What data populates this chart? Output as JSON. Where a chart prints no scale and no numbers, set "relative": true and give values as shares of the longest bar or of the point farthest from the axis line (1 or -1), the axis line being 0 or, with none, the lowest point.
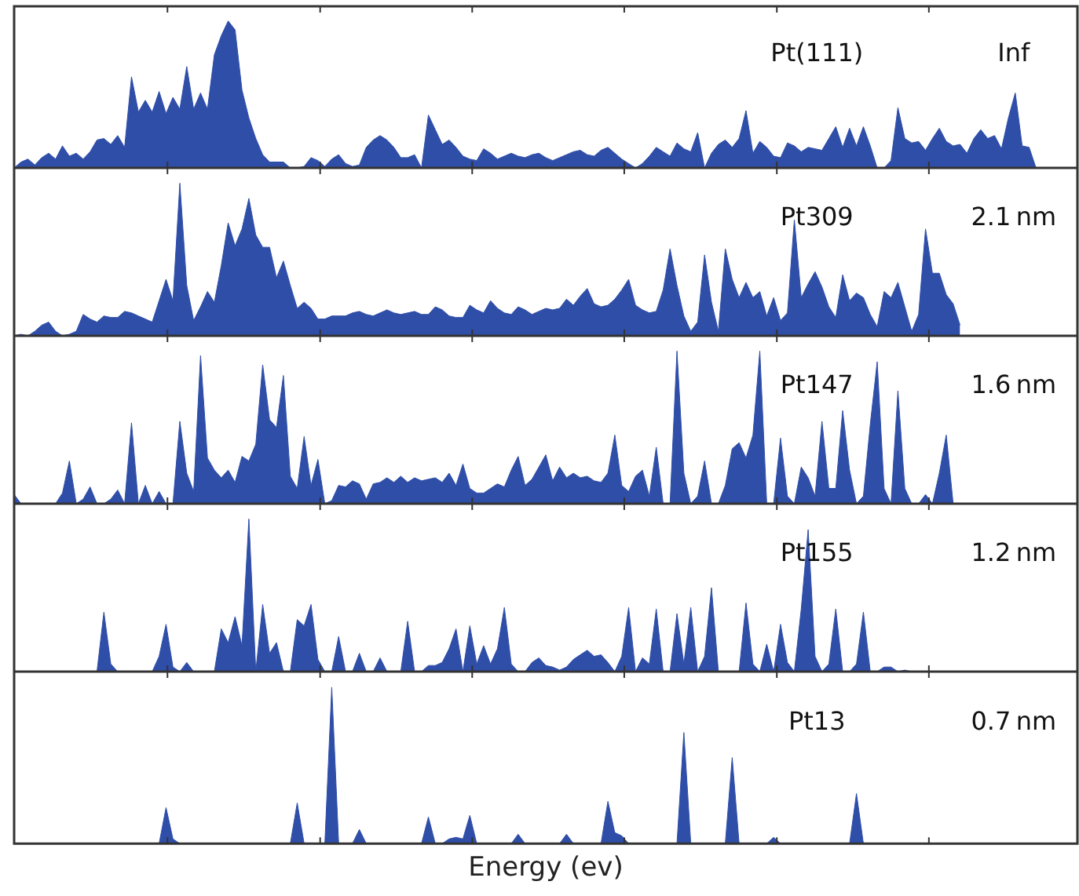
{
  "chart_data": [
    {
      "type": "area",
      "relative": true,
      "color": "#2f4ea8",
      "tick_labels": false,
      "annotations": [
        "Pt(111)",
        "Inf"
      ],
      "categories": [
        null,
        null,
        null,
        null,
        null,
        null,
        null,
        null,
        null,
        null,
        null,
        null,
        null,
        null,
        null,
        null,
        null,
        null,
        null,
        null,
        null,
        null,
        null,
        null,
        null,
        null,
        null,
        null,
        null,
        null,
        null,
        null,
        null,
        null,
        null,
        null,
        null,
        null,
        null,
        null,
        null,
        null,
        null,
        null,
        null,
        null,
        null,
        null,
        null,
        null,
        null,
        null,
        null,
        null,
        null,
        null,
        null,
        null,
        null,
        null,
        null,
        null,
        null,
        null,
        null,
        null,
        null,
        null,
        null,
        null,
        null,
        null,
        null,
        null,
        null,
        null,
        null,
        null,
        null,
        null,
        null,
        null,
        null,
        null,
        null,
        null,
        null,
        null,
        null,
        null,
        null,
        null,
        null,
        null,
        null,
        null,
        null,
        null,
        null,
        null,
        null,
        null,
        null,
        null,
        null,
        null,
        null,
        null,
        null,
        null,
        null,
        null,
        null,
        null,
        null,
        null,
        null,
        null,
        null,
        null,
        null,
        null,
        null,
        null,
        null,
        null,
        null,
        null,
        null,
        null,
        null,
        null,
        null,
        null,
        null,
        null,
        null,
        null,
        null,
        null,
        null,
        null,
        null,
        null,
        null,
        null,
        null,
        null,
        null,
        null,
        null,
        null,
        null,
        null,
        null
      ],
      "values": [
        0,
        0.04,
        0.06,
        0.02,
        0.07,
        0.1,
        0.06,
        0.15,
        0.08,
        0.1,
        0.06,
        0.11,
        0.19,
        0.2,
        0.16,
        0.22,
        0.14,
        0.62,
        0.38,
        0.46,
        0.38,
        0.52,
        0.37,
        0.48,
        0.4,
        0.69,
        0.4,
        0.51,
        0.4,
        0.77,
        0.9,
        1,
        0.94,
        0.53,
        0.34,
        0.2,
        0.09,
        0.04,
        0.04,
        0.04,
        0,
        0,
        0.01,
        0.07,
        0.05,
        0.01,
        0.06,
        0.09,
        0.03,
        0.01,
        0.02,
        0.14,
        0.19,
        0.22,
        0.19,
        0.14,
        0.07,
        0.07,
        0.09,
        0,
        0.36,
        0.26,
        0.16,
        0.19,
        0.14,
        0.08,
        0.06,
        0.05,
        0.13,
        0.1,
        0.06,
        0.08,
        0.1,
        0.08,
        0.07,
        0.09,
        0.1,
        0.07,
        0.05,
        0.07,
        0.09,
        0.11,
        0.12,
        0.09,
        0.08,
        0.12,
        0.14,
        0.1,
        0.06,
        0.03,
        0,
        0.03,
        0.08,
        0.14,
        0.11,
        0.08,
        0.17,
        0.13,
        0.11,
        0.24,
        0,
        0.1,
        0.16,
        0.19,
        0.14,
        0.2,
        0.39,
        0.1,
        0.18,
        0.14,
        0.08,
        0.07,
        0.17,
        0.15,
        0.11,
        0.14,
        0.13,
        0.12,
        0.2,
        0.28,
        0.14,
        0.27,
        0.15,
        0.28,
        0.15,
        0,
        0,
        0.05,
        0.41,
        0.2,
        0.17,
        0.18,
        0.12,
        0.2,
        0.27,
        0.18,
        0.15,
        0.16,
        0.1,
        0.2,
        0.26,
        0.2,
        0.22,
        0.13,
        0.34,
        0.51,
        0.15,
        0.14,
        0,
        null,
        null,
        null,
        null,
        null,
        null
      ]
    },
    {
      "type": "area",
      "relative": true,
      "color": "#2f4ea8",
      "tick_labels": false,
      "annotations": [
        "Pt309",
        "2.1 nm"
      ],
      "categories": [
        null,
        null,
        null,
        null,
        null,
        null,
        null,
        null,
        null,
        null,
        null,
        null,
        null,
        null,
        null,
        null,
        null,
        null,
        null,
        null,
        null,
        null,
        null,
        null,
        null,
        null,
        null,
        null,
        null,
        null,
        null,
        null,
        null,
        null,
        null,
        null,
        null,
        null,
        null,
        null,
        null,
        null,
        null,
        null,
        null,
        null,
        null,
        null,
        null,
        null,
        null,
        null,
        null,
        null,
        null,
        null,
        null,
        null,
        null,
        null,
        null,
        null,
        null,
        null,
        null,
        null,
        null,
        null,
        null,
        null,
        null,
        null,
        null,
        null,
        null,
        null,
        null,
        null,
        null,
        null,
        null,
        null,
        null,
        null,
        null,
        null,
        null,
        null,
        null,
        null,
        null,
        null,
        null,
        null,
        null,
        null,
        null,
        null,
        null,
        null,
        null,
        null,
        null,
        null,
        null,
        null,
        null,
        null,
        null,
        null,
        null,
        null,
        null,
        null,
        null,
        null,
        null,
        null,
        null,
        null,
        null,
        null,
        null,
        null,
        null,
        null,
        null,
        null,
        null,
        null,
        null,
        null,
        null,
        null,
        null,
        null,
        null,
        null,
        null,
        null,
        null,
        null,
        null,
        null,
        null,
        null,
        null,
        null,
        null,
        null,
        null,
        null,
        null,
        null,
        null
      ],
      "values": [
        0,
        0.01,
        0,
        0.03,
        0.07,
        0.09,
        0.03,
        0,
        0.01,
        0.03,
        0.14,
        0.11,
        0.09,
        0.13,
        0.12,
        0.12,
        0.16,
        0.15,
        0.13,
        0.11,
        0.09,
        0.23,
        0.37,
        0.23,
        1,
        0.33,
        0.1,
        0.19,
        0.29,
        0.22,
        0.46,
        0.74,
        0.59,
        0.7,
        0.9,
        0.66,
        0.58,
        0.58,
        0.38,
        0.49,
        0.33,
        0.18,
        0.22,
        0.18,
        0.11,
        0.11,
        0.13,
        0.13,
        0.13,
        0.15,
        0.16,
        0.14,
        0.13,
        0.15,
        0.17,
        0.15,
        0.14,
        0.15,
        0.16,
        0.14,
        0.14,
        0.19,
        0.17,
        0.13,
        0.12,
        0.12,
        0.2,
        0.17,
        0.15,
        0.23,
        0.18,
        0.15,
        0.14,
        0.19,
        0.17,
        0.14,
        0.16,
        0.18,
        0.17,
        0.18,
        0.24,
        0.2,
        0.26,
        0.31,
        0.21,
        0.19,
        0.2,
        0.24,
        0.3,
        0.37,
        0.2,
        0.17,
        0.15,
        0.16,
        0.3,
        0.57,
        0.33,
        0.13,
        0.03,
        0.09,
        0.53,
        0.22,
        0.03,
        0.57,
        0.37,
        0.25,
        0.35,
        0.25,
        0.29,
        0.13,
        0.25,
        0.1,
        0.15,
        0.76,
        0.25,
        0.34,
        0.42,
        0.32,
        0.19,
        0.12,
        0.4,
        0.23,
        0.28,
        0.25,
        0.14,
        0.06,
        0.29,
        0.25,
        0.35,
        0.19,
        0.03,
        0.14,
        0.7,
        0.41,
        0.41,
        0.27,
        0.21,
        0.07,
        null,
        null,
        null,
        null,
        null,
        null,
        null,
        null,
        null,
        null,
        null,
        null,
        null,
        null,
        null,
        null,
        null
      ]
    },
    {
      "type": "area",
      "relative": true,
      "color": "#2f4ea8",
      "tick_labels": false,
      "annotations": [
        "Pt147",
        "1.6 nm"
      ],
      "categories": [
        null,
        null,
        null,
        null,
        null,
        null,
        null,
        null,
        null,
        null,
        null,
        null,
        null,
        null,
        null,
        null,
        null,
        null,
        null,
        null,
        null,
        null,
        null,
        null,
        null,
        null,
        null,
        null,
        null,
        null,
        null,
        null,
        null,
        null,
        null,
        null,
        null,
        null,
        null,
        null,
        null,
        null,
        null,
        null,
        null,
        null,
        null,
        null,
        null,
        null,
        null,
        null,
        null,
        null,
        null,
        null,
        null,
        null,
        null,
        null,
        null,
        null,
        null,
        null,
        null,
        null,
        null,
        null,
        null,
        null,
        null,
        null,
        null,
        null,
        null,
        null,
        null,
        null,
        null,
        null,
        null,
        null,
        null,
        null,
        null,
        null,
        null,
        null,
        null,
        null,
        null,
        null,
        null,
        null,
        null,
        null,
        null,
        null,
        null,
        null,
        null,
        null,
        null,
        null,
        null,
        null,
        null,
        null,
        null,
        null,
        null,
        null,
        null,
        null,
        null,
        null,
        null,
        null,
        null,
        null,
        null,
        null,
        null,
        null,
        null,
        null,
        null,
        null,
        null,
        null,
        null,
        null,
        null,
        null,
        null,
        null,
        null,
        null,
        null,
        null,
        null,
        null,
        null,
        null,
        null,
        null,
        null,
        null,
        null,
        null,
        null,
        null,
        null,
        null,
        null
      ],
      "values": [
        0.06,
        0,
        0,
        0,
        0,
        0,
        0,
        0.07,
        0.28,
        0,
        0.03,
        0.11,
        0,
        0,
        0.03,
        0.09,
        0,
        0.53,
        0,
        0.12,
        0,
        0.08,
        0,
        0,
        0.54,
        0.2,
        0.08,
        0.97,
        0.3,
        0.22,
        0.17,
        0.22,
        0.14,
        0.31,
        0.28,
        0.39,
        0.91,
        0.55,
        0.5,
        0.84,
        0.18,
        0.1,
        0.44,
        0.12,
        0.29,
        0,
        0.02,
        0.12,
        0.11,
        0.15,
        0.13,
        0.03,
        0.13,
        0.14,
        0.17,
        0.14,
        0.18,
        0.14,
        0.17,
        0.15,
        0.16,
        0.17,
        0.14,
        0.2,
        0.12,
        0.26,
        0.1,
        0.07,
        0.07,
        0.1,
        0.13,
        0.11,
        0.22,
        0.31,
        0.12,
        0.16,
        0.24,
        0.32,
        0.15,
        0.24,
        0.17,
        0.2,
        0.17,
        0.18,
        0.15,
        0.14,
        0.2,
        0.45,
        0.12,
        0.08,
        0.18,
        0.22,
        0.05,
        0.37,
        0,
        0,
        1,
        0.2,
        0,
        0.05,
        0.28,
        0,
        0,
        0.12,
        0.36,
        0.4,
        0.3,
        0.45,
        1,
        0,
        0,
        0.43,
        0.05,
        0,
        0.24,
        0.17,
        0.05,
        0.54,
        0.1,
        0.1,
        0.61,
        0.22,
        0,
        0.05,
        0.52,
        0.93,
        0.1,
        0,
        0.74,
        0.1,
        0,
        0,
        0.06,
        0,
        0.2,
        0.45,
        0,
        null,
        null,
        null,
        null,
        null,
        null,
        null,
        null,
        null,
        null,
        null,
        null,
        null,
        null,
        null,
        null,
        null,
        null
      ]
    },
    {
      "type": "area",
      "relative": true,
      "color": "#2f4ea8",
      "tick_labels": false,
      "annotations": [
        "Pt155",
        "1.2 nm"
      ],
      "categories": [
        null,
        null,
        null,
        null,
        null,
        null,
        null,
        null,
        null,
        null,
        null,
        null,
        null,
        null,
        null,
        null,
        null,
        null,
        null,
        null,
        null,
        null,
        null,
        null,
        null,
        null,
        null,
        null,
        null,
        null,
        null,
        null,
        null,
        null,
        null,
        null,
        null,
        null,
        null,
        null,
        null,
        null,
        null,
        null,
        null,
        null,
        null,
        null,
        null,
        null,
        null,
        null,
        null,
        null,
        null,
        null,
        null,
        null,
        null,
        null,
        null,
        null,
        null,
        null,
        null,
        null,
        null,
        null,
        null,
        null,
        null,
        null,
        null,
        null,
        null,
        null,
        null,
        null,
        null,
        null,
        null,
        null,
        null,
        null,
        null,
        null,
        null,
        null,
        null,
        null,
        null,
        null,
        null,
        null,
        null,
        null,
        null,
        null,
        null,
        null,
        null,
        null,
        null,
        null,
        null,
        null,
        null,
        null,
        null,
        null,
        null,
        null,
        null,
        null,
        null,
        null,
        null,
        null,
        null,
        null,
        null,
        null,
        null,
        null,
        null,
        null,
        null,
        null,
        null,
        null,
        null,
        null,
        null,
        null,
        null,
        null,
        null,
        null,
        null,
        null,
        null,
        null,
        null,
        null,
        null,
        null,
        null,
        null,
        null,
        null,
        null,
        null,
        null,
        null,
        null
      ],
      "values": [
        0,
        0,
        0,
        0,
        0,
        0,
        0,
        0,
        0,
        0,
        0,
        0,
        0,
        0.39,
        0.05,
        0,
        0,
        0,
        0,
        0,
        0,
        0.1,
        0.31,
        0.03,
        0,
        0.06,
        0,
        0,
        0,
        0,
        0.28,
        0.19,
        0.36,
        0.17,
        1,
        0,
        0.44,
        0.12,
        0.19,
        0,
        0,
        0.34,
        0.3,
        0.44,
        0.08,
        0,
        0,
        0.23,
        0,
        0,
        0.12,
        0,
        0,
        0.09,
        0,
        0,
        0,
        0.33,
        0,
        0,
        0.04,
        0.04,
        0.06,
        0.15,
        0.28,
        0,
        0.3,
        0.05,
        0.17,
        0.05,
        0.15,
        0.42,
        0.05,
        0,
        0,
        0.06,
        0.09,
        0.04,
        0.03,
        0.01,
        0.03,
        0.08,
        0.11,
        0.14,
        0.1,
        0.11,
        0.06,
        0,
        0.1,
        0.42,
        0,
        0.09,
        0.05,
        0.41,
        0,
        0,
        0.38,
        0.05,
        0.42,
        0,
        0.1,
        0.55,
        0,
        0,
        0,
        0,
        0.45,
        0.05,
        0,
        0.18,
        0,
        0.31,
        0.06,
        0,
        0.41,
        0.93,
        0.1,
        0,
        0.05,
        0.41,
        0,
        0,
        0.05,
        0.39,
        0,
        0,
        0.03,
        0.03,
        0,
        0.01,
        0,
        null,
        null,
        null,
        null,
        null,
        null,
        null,
        null,
        null,
        null,
        null,
        null,
        null,
        null,
        null,
        null,
        null,
        null,
        null,
        null,
        null,
        null,
        null,
        null
      ]
    },
    {
      "type": "area",
      "relative": true,
      "color": "#2f4ea8",
      "tick_labels": false,
      "xlabel": "Energy (ev)",
      "annotations": [
        "Pt13",
        "0.7 nm"
      ],
      "categories": [
        null,
        null,
        null,
        null,
        null,
        null,
        null,
        null,
        null,
        null,
        null,
        null,
        null,
        null,
        null,
        null,
        null,
        null,
        null,
        null,
        null,
        null,
        null,
        null,
        null,
        null,
        null,
        null,
        null,
        null,
        null,
        null,
        null,
        null,
        null,
        null,
        null,
        null,
        null,
        null,
        null,
        null,
        null,
        null,
        null,
        null,
        null,
        null,
        null,
        null,
        null,
        null,
        null,
        null,
        null,
        null,
        null,
        null,
        null,
        null,
        null,
        null,
        null,
        null,
        null,
        null,
        null,
        null,
        null,
        null,
        null,
        null,
        null,
        null,
        null,
        null,
        null,
        null,
        null,
        null,
        null,
        null,
        null,
        null,
        null,
        null,
        null,
        null,
        null,
        null,
        null,
        null,
        null,
        null,
        null,
        null,
        null,
        null,
        null,
        null,
        null,
        null,
        null,
        null,
        null,
        null,
        null,
        null,
        null,
        null,
        null,
        null,
        null,
        null,
        null,
        null,
        null,
        null,
        null,
        null,
        null,
        null,
        null,
        null,
        null,
        null,
        null,
        null,
        null,
        null,
        null,
        null,
        null,
        null,
        null,
        null,
        null,
        null,
        null,
        null,
        null,
        null,
        null,
        null,
        null,
        null,
        null,
        null,
        null,
        null,
        null,
        null,
        null,
        null,
        null
      ],
      "values": [
        0,
        0,
        0,
        0,
        0,
        0,
        0,
        0,
        0,
        0,
        0,
        0,
        0,
        0,
        0,
        0,
        0,
        0,
        0,
        0,
        0,
        0,
        0.23,
        0.03,
        0,
        0,
        0,
        0,
        0,
        0,
        0,
        0,
        0,
        0,
        0,
        0,
        0,
        0,
        0,
        0,
        0,
        0.26,
        0,
        0,
        0,
        0,
        1,
        0,
        0,
        0,
        0.09,
        0,
        0,
        0,
        0,
        0,
        0,
        0,
        0,
        0,
        0.17,
        0,
        0,
        0.03,
        0.04,
        0.03,
        0.18,
        0,
        0,
        0,
        0,
        0,
        0,
        0.06,
        0,
        0,
        0,
        0,
        0,
        0,
        0.06,
        0,
        0,
        0,
        0,
        0,
        0.27,
        0.07,
        0.05,
        0,
        0,
        0,
        0,
        0,
        0,
        0,
        0,
        0.71,
        0,
        0,
        0,
        0,
        0,
        0,
        0.55,
        0,
        0,
        0,
        0,
        0,
        0.04,
        0,
        0,
        0,
        0,
        0,
        0,
        0,
        0,
        0,
        0,
        0,
        0.32,
        0,
        0,
        0,
        0,
        0,
        0,
        0,
        0,
        0,
        0,
        0,
        0,
        0,
        0,
        0,
        0,
        0,
        0,
        0,
        0,
        0,
        0,
        0,
        0,
        0,
        0,
        0,
        0,
        0,
        0,
        0,
        0
      ]
    }
  ]
}
